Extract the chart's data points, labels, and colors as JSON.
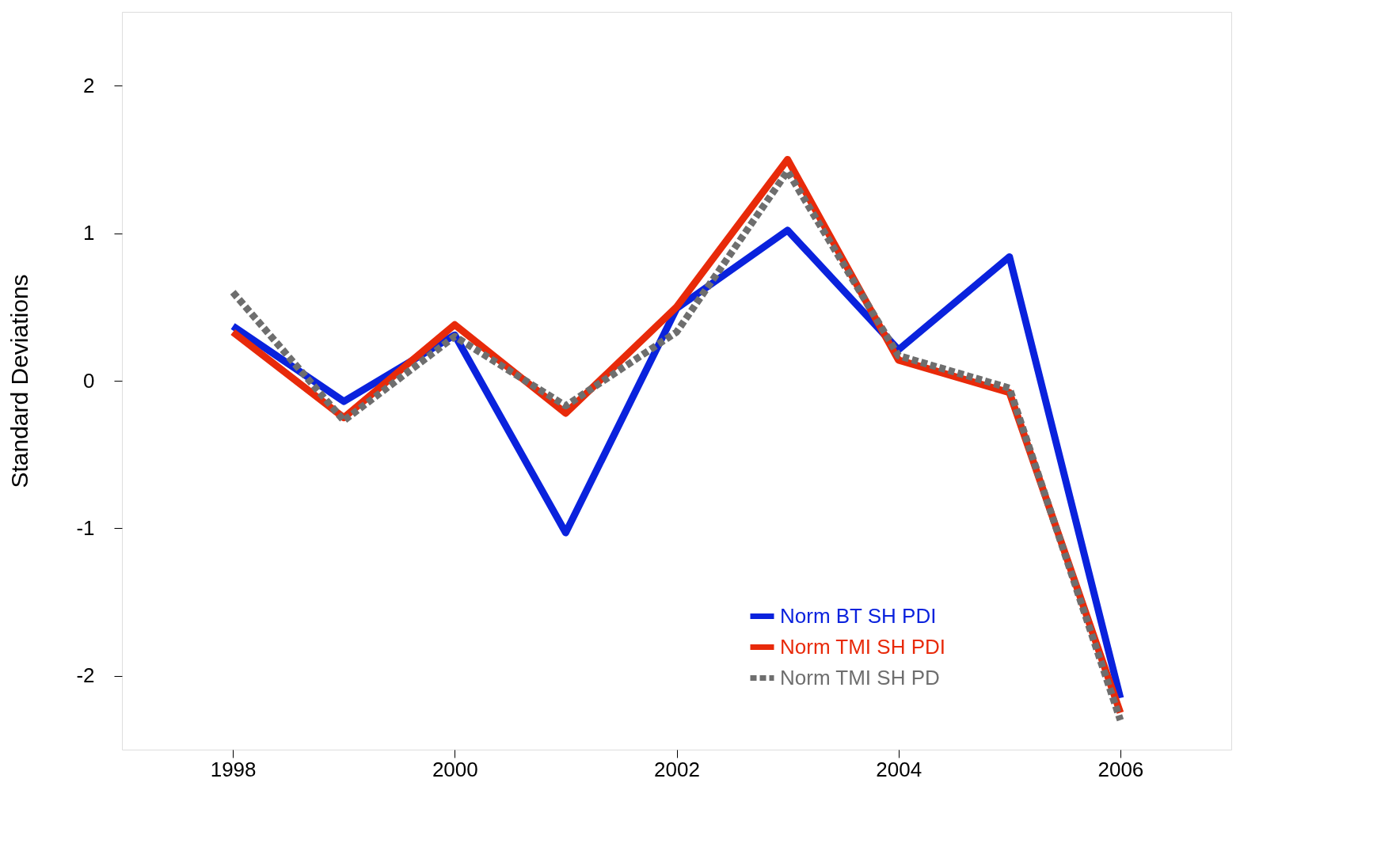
{
  "chart_data": {
    "type": "line",
    "ylabel": "Standard Deviations",
    "x": [
      1998,
      1999,
      2000,
      2001,
      2002,
      2003,
      2004,
      2005,
      2006
    ],
    "series": [
      {
        "name": "Norm BT SH PDI",
        "color": "#0a22dd",
        "line_style": "solid",
        "values": [
          0.37,
          -0.14,
          0.31,
          -1.03,
          0.49,
          1.02,
          0.21,
          0.84,
          -2.15
        ]
      },
      {
        "name": "Norm TMI SH PDI",
        "color": "#e82a0a",
        "line_style": "solid",
        "values": [
          0.33,
          -0.25,
          0.38,
          -0.22,
          0.5,
          1.5,
          0.14,
          -0.08,
          -2.25
        ]
      },
      {
        "name": "Norm TMI SH PD",
        "color": "#6e6e6e",
        "line_style": "dashed",
        "values": [
          0.6,
          -0.27,
          0.3,
          -0.17,
          0.33,
          1.42,
          0.17,
          -0.05,
          -2.3
        ]
      }
    ],
    "xlim": [
      1997,
      2007
    ],
    "xticks": [
      1998,
      2000,
      2002,
      2004,
      2006
    ],
    "ylim": [
      -2.5,
      2.5
    ],
    "yticks": [
      -2,
      -1,
      0,
      1,
      2
    ],
    "grid": false,
    "legend": "bottom right",
    "marker": "none"
  }
}
